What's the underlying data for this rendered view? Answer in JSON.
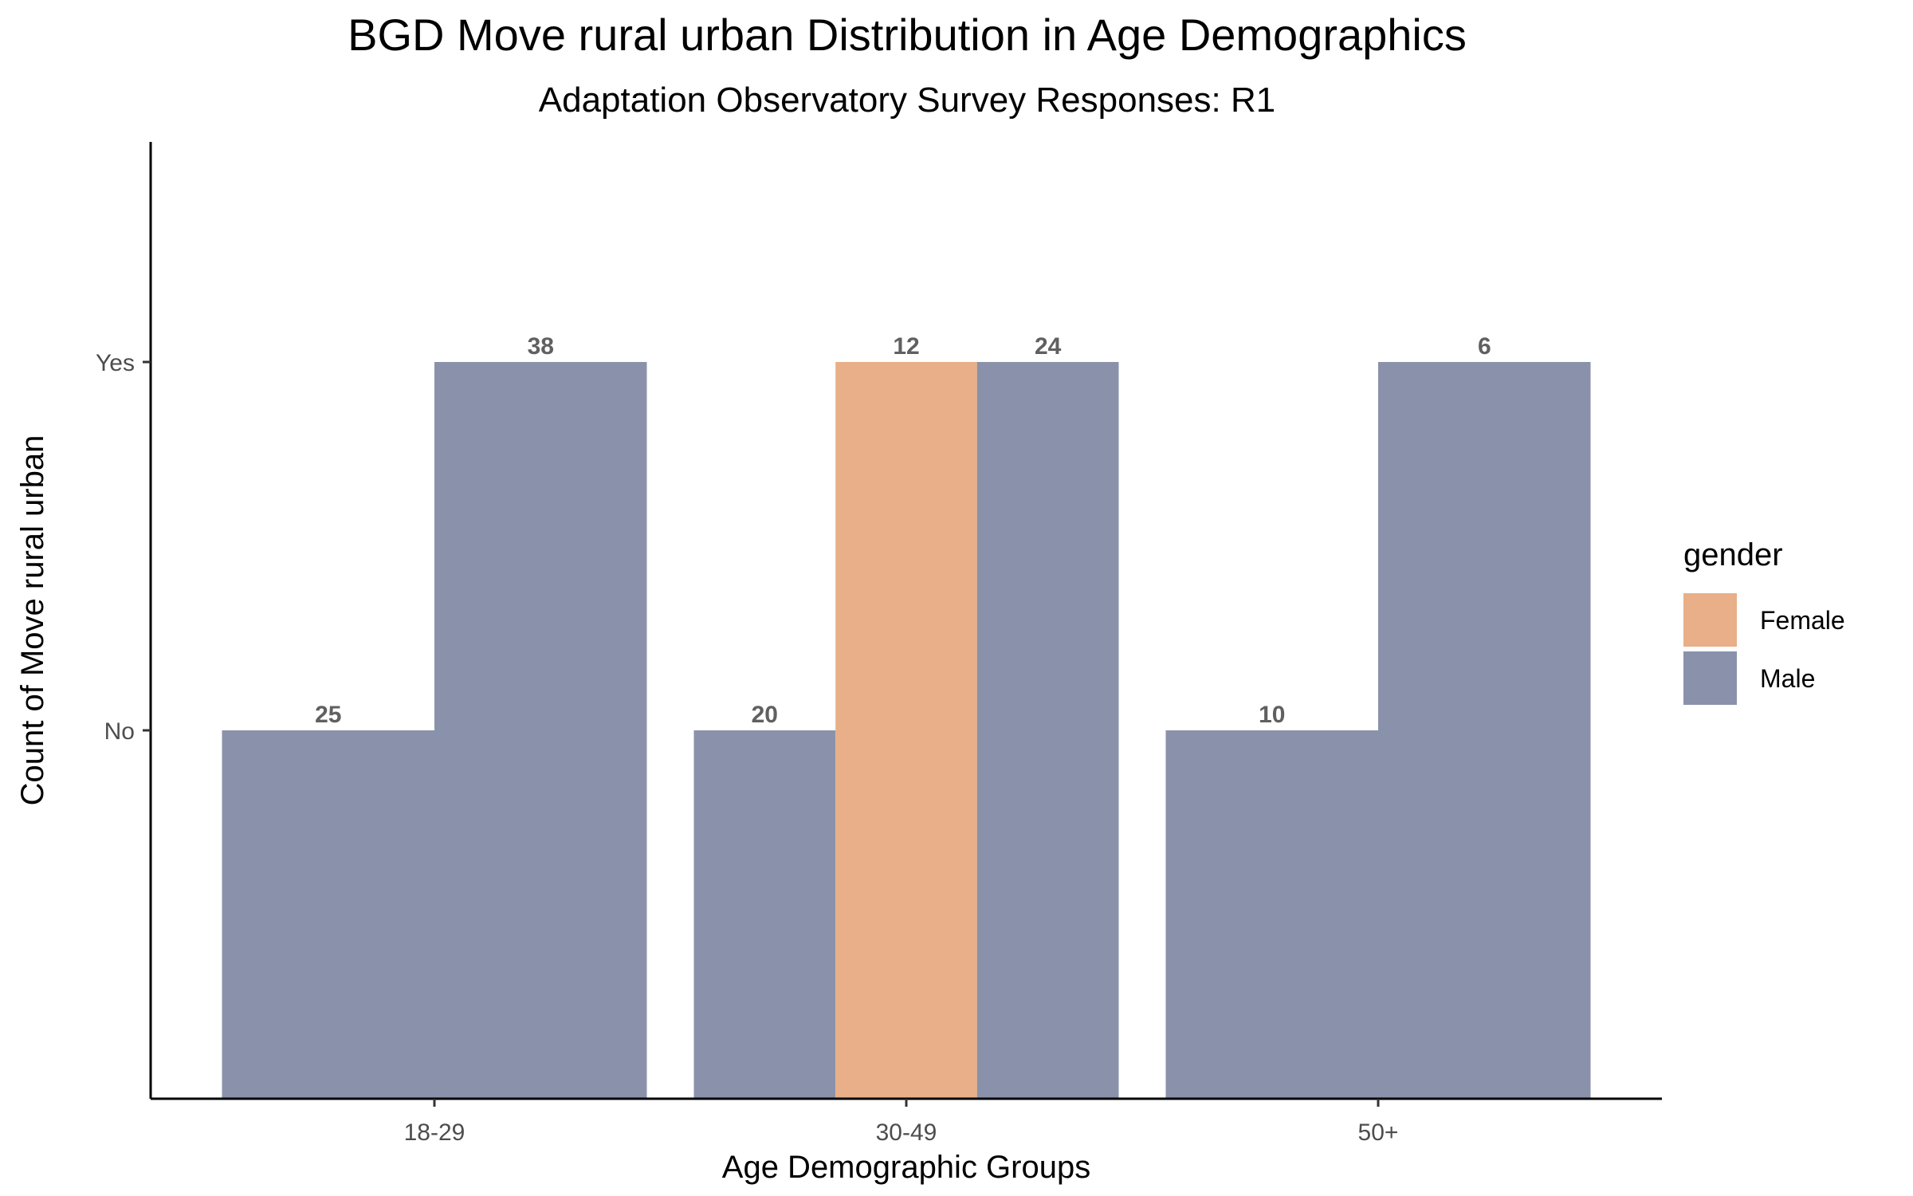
{
  "chart_data": {
    "type": "bar",
    "title": "BGD Move rural urban Distribution in Age Demographics",
    "subtitle": "Adaptation Observatory Survey Responses: R1",
    "xlabel": "Age Demographic Groups",
    "ylabel": "Count of Move rural urban",
    "categories": [
      "18-29",
      "30-49",
      "50+"
    ],
    "y_categories": [
      "No",
      "Yes"
    ],
    "grid": false,
    "legend": {
      "title": "gender",
      "position": "right",
      "entries": [
        {
          "label": "Female",
          "color": "#E8AF88"
        },
        {
          "label": "Male",
          "color": "#8A92AB"
        }
      ]
    },
    "bars": [
      {
        "category": "18-29",
        "gender": "Male",
        "response": "No",
        "count": 25
      },
      {
        "category": "18-29",
        "gender": "Male",
        "response": "Yes",
        "count": 38
      },
      {
        "category": "30-49",
        "gender": "Male",
        "response": "No",
        "count": 20
      },
      {
        "category": "30-49",
        "gender": "Female",
        "response": "Yes",
        "count": 12
      },
      {
        "category": "30-49",
        "gender": "Male",
        "response": "Yes",
        "count": 24
      },
      {
        "category": "50+",
        "gender": "Male",
        "response": "No",
        "count": 10
      },
      {
        "category": "50+",
        "gender": "Male",
        "response": "Yes",
        "count": 6
      }
    ]
  }
}
